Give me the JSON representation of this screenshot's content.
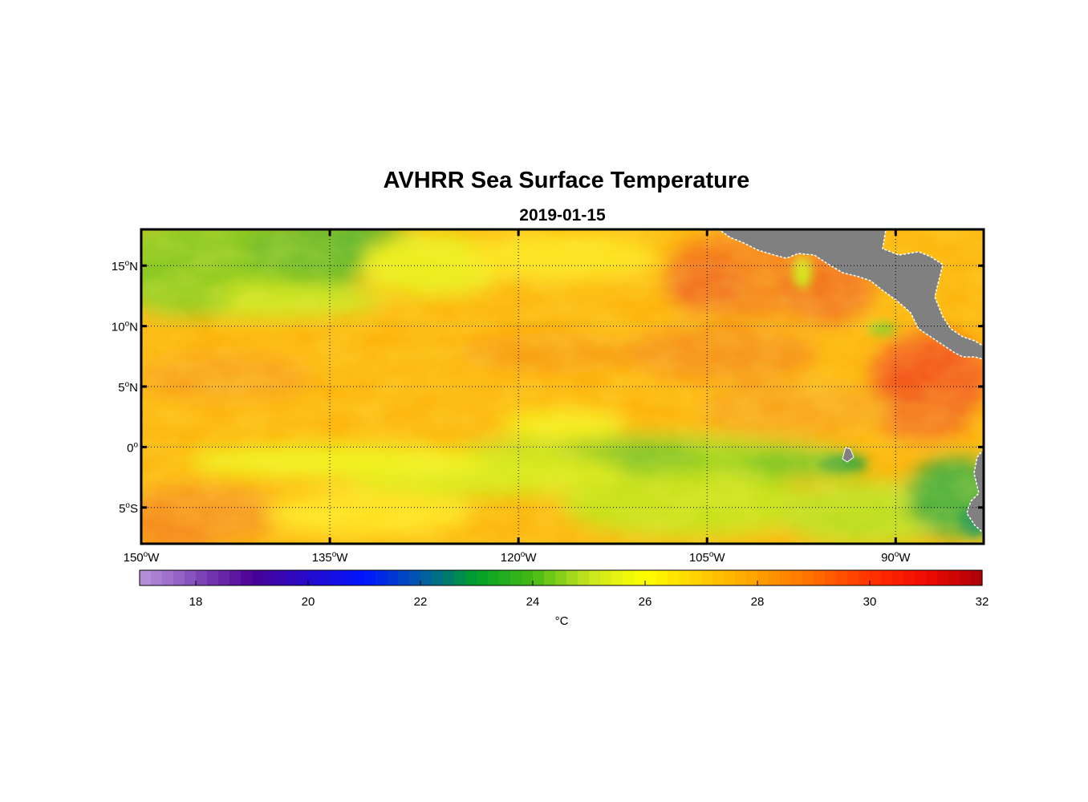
{
  "title": "AVHRR Sea Surface Temperature",
  "date": "2019-01-15",
  "map": {
    "lon_range": [
      -150,
      -83
    ],
    "lat_range": [
      -8,
      18
    ],
    "lat_ticks": [
      {
        "value": 15,
        "num": "15",
        "hemi": "N"
      },
      {
        "value": 10,
        "num": "10",
        "hemi": "N"
      },
      {
        "value": 5,
        "num": "5",
        "hemi": "N"
      },
      {
        "value": 0,
        "num": "0",
        "hemi": ""
      },
      {
        "value": -5,
        "num": "5",
        "hemi": "S"
      }
    ],
    "lon_ticks": [
      {
        "value": -150,
        "num": "150",
        "hemi": "W"
      },
      {
        "value": -135,
        "num": "135",
        "hemi": "W"
      },
      {
        "value": -120,
        "num": "120",
        "hemi": "W"
      },
      {
        "value": -105,
        "num": "105",
        "hemi": "W"
      },
      {
        "value": -90,
        "num": "90",
        "hemi": "W"
      }
    ],
    "degree_symbol": "o",
    "land_color": "#808080",
    "grid": "dotted"
  },
  "colorbar": {
    "min": 17,
    "max": 32,
    "ticks": [
      18,
      20,
      22,
      24,
      26,
      28,
      30,
      32
    ],
    "unit": "°C"
  }
}
